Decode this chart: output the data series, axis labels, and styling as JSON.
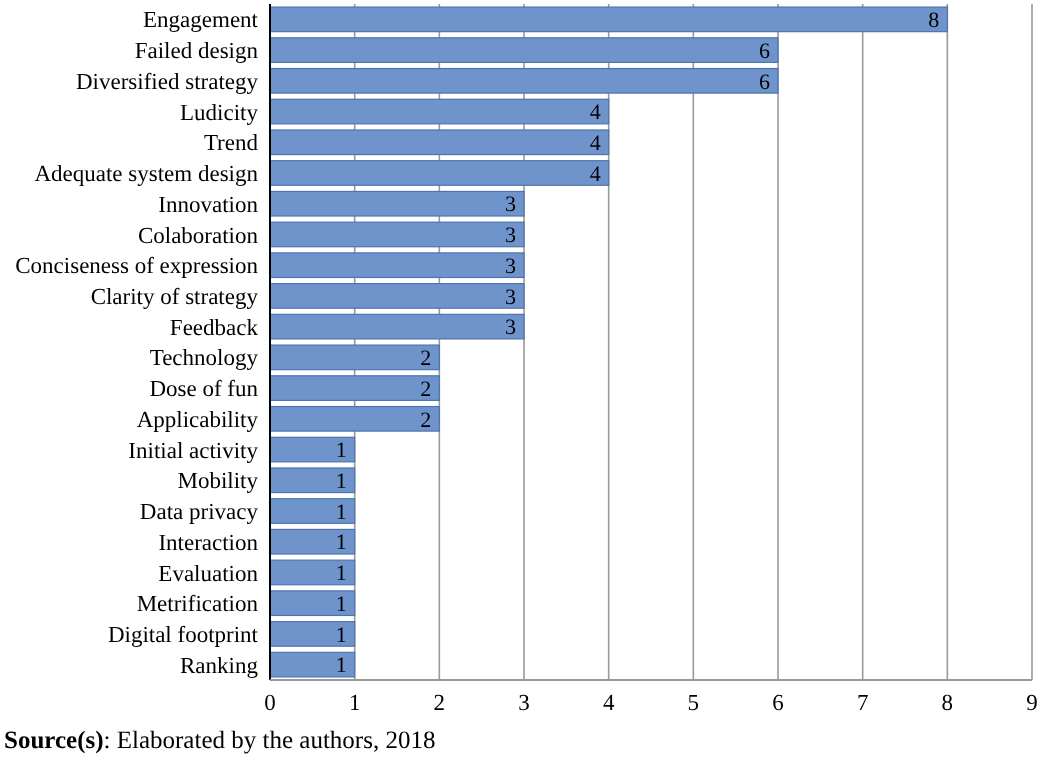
{
  "chart_data": {
    "type": "bar",
    "orientation": "horizontal",
    "categories": [
      "Engagement",
      "Failed design",
      "Diversified strategy",
      "Ludicity",
      "Trend",
      "Adequate system design",
      "Innovation",
      "Colaboration",
      "Conciseness of expression",
      "Clarity of strategy",
      "Feedback",
      "Technology",
      "Dose of fun",
      "Applicability",
      "Initial activity",
      "Mobility",
      "Data privacy",
      "Interaction",
      "Evaluation",
      "Metrification",
      "Digital footprint",
      "Ranking"
    ],
    "values": [
      8,
      6,
      6,
      4,
      4,
      4,
      3,
      3,
      3,
      3,
      3,
      2,
      2,
      2,
      1,
      1,
      1,
      1,
      1,
      1,
      1,
      1
    ],
    "color": "#6f94cc",
    "xlim": [
      0,
      9
    ],
    "xticks": [
      0,
      1,
      2,
      3,
      4,
      5,
      6,
      7,
      8,
      9
    ],
    "grid": "x",
    "data_labels": true,
    "annotations": [
      "Source(s): Elaborated by the authors, 2018"
    ]
  }
}
